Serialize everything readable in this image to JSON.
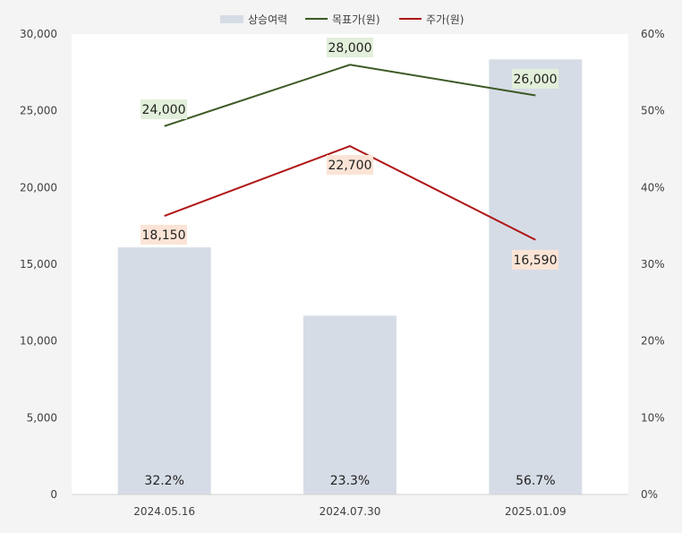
{
  "chart_data": {
    "type": "bar+line",
    "categories": [
      "2024.05.16",
      "2024.07.30",
      "2025.01.09"
    ],
    "bar_series": {
      "name": "상승여력",
      "axis": "right",
      "values": [
        32.2,
        23.3,
        56.7
      ],
      "labels": [
        "32.2%",
        "23.3%",
        "56.7%"
      ],
      "color": "#d6dce6"
    },
    "line_series": [
      {
        "name": "목표가(원)",
        "axis": "left",
        "values": [
          24000,
          28000,
          26000
        ],
        "labels": [
          "24,000",
          "28,000",
          "26,000"
        ],
        "color": "#3d5a25",
        "label_bg": "#e2efda"
      },
      {
        "name": "주가(원)",
        "axis": "left",
        "values": [
          18150,
          22700,
          16590
        ],
        "labels": [
          "18,150",
          "22,700",
          "16,590"
        ],
        "color": "#b01515",
        "label_bg": "#fbe4d6"
      }
    ],
    "y_left": {
      "min": 0,
      "max": 30000,
      "ticks": [
        0,
        5000,
        10000,
        15000,
        20000,
        25000,
        30000
      ],
      "tick_labels": [
        "0",
        "5,000",
        "10,000",
        "15,000",
        "20,000",
        "25,000",
        "30,000"
      ]
    },
    "y_right": {
      "min": 0,
      "max": 60,
      "ticks": [
        0,
        10,
        20,
        30,
        40,
        50,
        60
      ],
      "tick_labels": [
        "0%",
        "10%",
        "20%",
        "30%",
        "40%",
        "50%",
        "60%"
      ]
    },
    "legend": [
      "상승여력",
      "목표가(원)",
      "주가(원)"
    ],
    "legend_position": "top",
    "grid": false,
    "plot_background": "#ffffff"
  }
}
